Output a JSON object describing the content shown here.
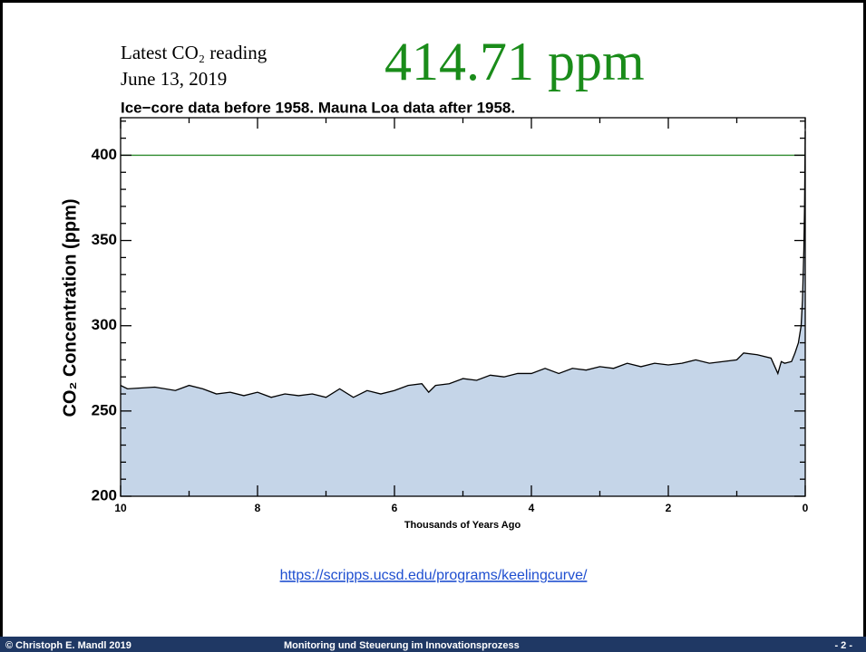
{
  "chart_data": {
    "type": "area",
    "header_line1": "Latest CO₂ reading",
    "header_date": "June 13, 2019",
    "reading": "414.71 ppm",
    "title": "Ice−core data before 1958. Mauna Loa data after 1958.",
    "ylabel": "CO₂ Concentration (ppm)",
    "xlabel": "Thousands of Years Ago",
    "x": [
      10,
      9.9,
      9.5,
      9.2,
      9.0,
      8.8,
      8.6,
      8.4,
      8.2,
      8.0,
      7.8,
      7.6,
      7.4,
      7.2,
      7.0,
      6.8,
      6.6,
      6.4,
      6.2,
      6.0,
      5.8,
      5.6,
      5.5,
      5.4,
      5.2,
      5.0,
      4.8,
      4.6,
      4.4,
      4.2,
      4.0,
      3.8,
      3.6,
      3.4,
      3.2,
      3.0,
      2.8,
      2.6,
      2.4,
      2.2,
      2.0,
      1.8,
      1.6,
      1.4,
      1.2,
      1.0,
      0.9,
      0.7,
      0.5,
      0.4,
      0.35,
      0.3,
      0.2,
      0.15,
      0.1,
      0.06,
      0.04,
      0.02,
      0.01,
      0.0
    ],
    "values": [
      265,
      263,
      264,
      262,
      265,
      263,
      260,
      261,
      259,
      261,
      258,
      260,
      259,
      260,
      258,
      263,
      258,
      262,
      260,
      262,
      265,
      266,
      261,
      265,
      266,
      269,
      268,
      271,
      270,
      272,
      272,
      275,
      272,
      275,
      274,
      276,
      275,
      278,
      276,
      278,
      277,
      278,
      280,
      278,
      279,
      280,
      284,
      283,
      281,
      272,
      279,
      278,
      279,
      284,
      290,
      300,
      315,
      345,
      370,
      414
    ],
    "color": "#c5d5e8",
    "line_color": "#000000",
    "xlim": [
      10,
      0
    ],
    "xticks": [
      10,
      8,
      6,
      4,
      2,
      0
    ],
    "xticks_minor": [
      9,
      7,
      5,
      3,
      1
    ],
    "ylim": [
      200,
      422
    ],
    "yticks": [
      200,
      250,
      300,
      350,
      400
    ],
    "yticks_minor": [
      210,
      220,
      230,
      240,
      260,
      270,
      280,
      290,
      310,
      320,
      330,
      340,
      360,
      370,
      380,
      390,
      410,
      420
    ],
    "hline": 400,
    "hline_color": "#2e8b2e",
    "link": "https://scripps.ucsd.edu/programs/keelingcurve/"
  },
  "footer": {
    "left": "© Christoph E. Mandl 2019",
    "center": "Monitoring und Steuerung im Innovationsprozess",
    "right": "- 2 -"
  }
}
